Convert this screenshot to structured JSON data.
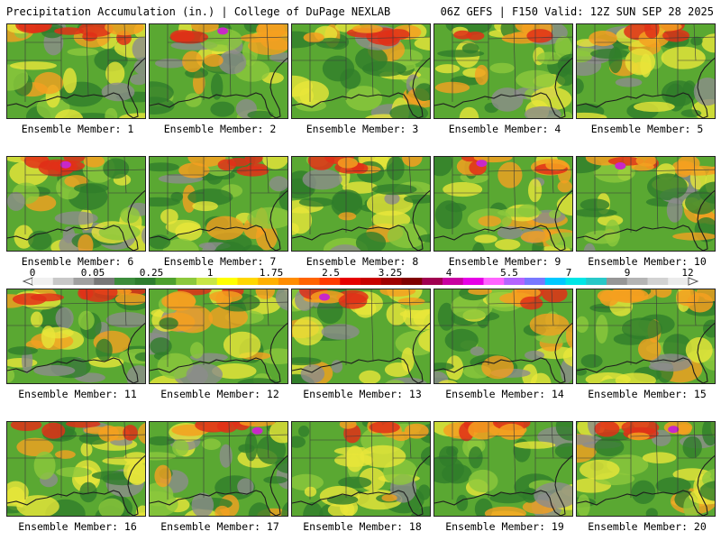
{
  "header": {
    "left": "Precipitation Accumulation (in.) | College of DuPage NEXLAB",
    "right": "06Z GEFS | F150 Valid: 12Z SUN SEP 28 2025"
  },
  "members": [
    {
      "label": "Ensemble Member: 1"
    },
    {
      "label": "Ensemble Member: 2"
    },
    {
      "label": "Ensemble Member: 3"
    },
    {
      "label": "Ensemble Member: 4"
    },
    {
      "label": "Ensemble Member: 5"
    },
    {
      "label": "Ensemble Member: 6"
    },
    {
      "label": "Ensemble Member: 7"
    },
    {
      "label": "Ensemble Member: 8"
    },
    {
      "label": "Ensemble Member: 9"
    },
    {
      "label": "Ensemble Member: 10"
    },
    {
      "label": "Ensemble Member: 11"
    },
    {
      "label": "Ensemble Member: 12"
    },
    {
      "label": "Ensemble Member: 13"
    },
    {
      "label": "Ensemble Member: 14"
    },
    {
      "label": "Ensemble Member: 15"
    },
    {
      "label": "Ensemble Member: 16"
    },
    {
      "label": "Ensemble Member: 17"
    },
    {
      "label": "Ensemble Member: 18"
    },
    {
      "label": "Ensemble Member: 19"
    },
    {
      "label": "Ensemble Member: 20"
    }
  ],
  "colorbar": {
    "labels": [
      "0",
      "0.05",
      "0.25",
      "1",
      "1.75",
      "2.5",
      "3.25",
      "4",
      "5.5",
      "7",
      "9",
      "12"
    ],
    "colors": [
      "#f0f0f0",
      "#c8c8c8",
      "#a0a0a0",
      "#787878",
      "#3c8c3c",
      "#2e7d2e",
      "#4ea02e",
      "#8cc83c",
      "#c8e646",
      "#ffff00",
      "#ffd700",
      "#ffb000",
      "#ff8c00",
      "#ff6400",
      "#ff3c00",
      "#e60000",
      "#c80000",
      "#a00000",
      "#800000",
      "#a00050",
      "#c800a0",
      "#e600e6",
      "#ff64ff",
      "#b464ff",
      "#7878ff",
      "#00c8ff",
      "#00e6e6",
      "#28c8c8",
      "#969696",
      "#b4b4b4",
      "#d2d2d2",
      "#ebebeb"
    ]
  },
  "colors": {
    "base": "#5aa832",
    "dark_green": "#2f7d2a",
    "light_green": "#8cc83c",
    "yellow": "#e8e63a",
    "orange": "#f4a020",
    "red": "#e03018",
    "magenta": "#c828c8",
    "gray": "#8c8c8c",
    "border": "#1e1e1e"
  }
}
